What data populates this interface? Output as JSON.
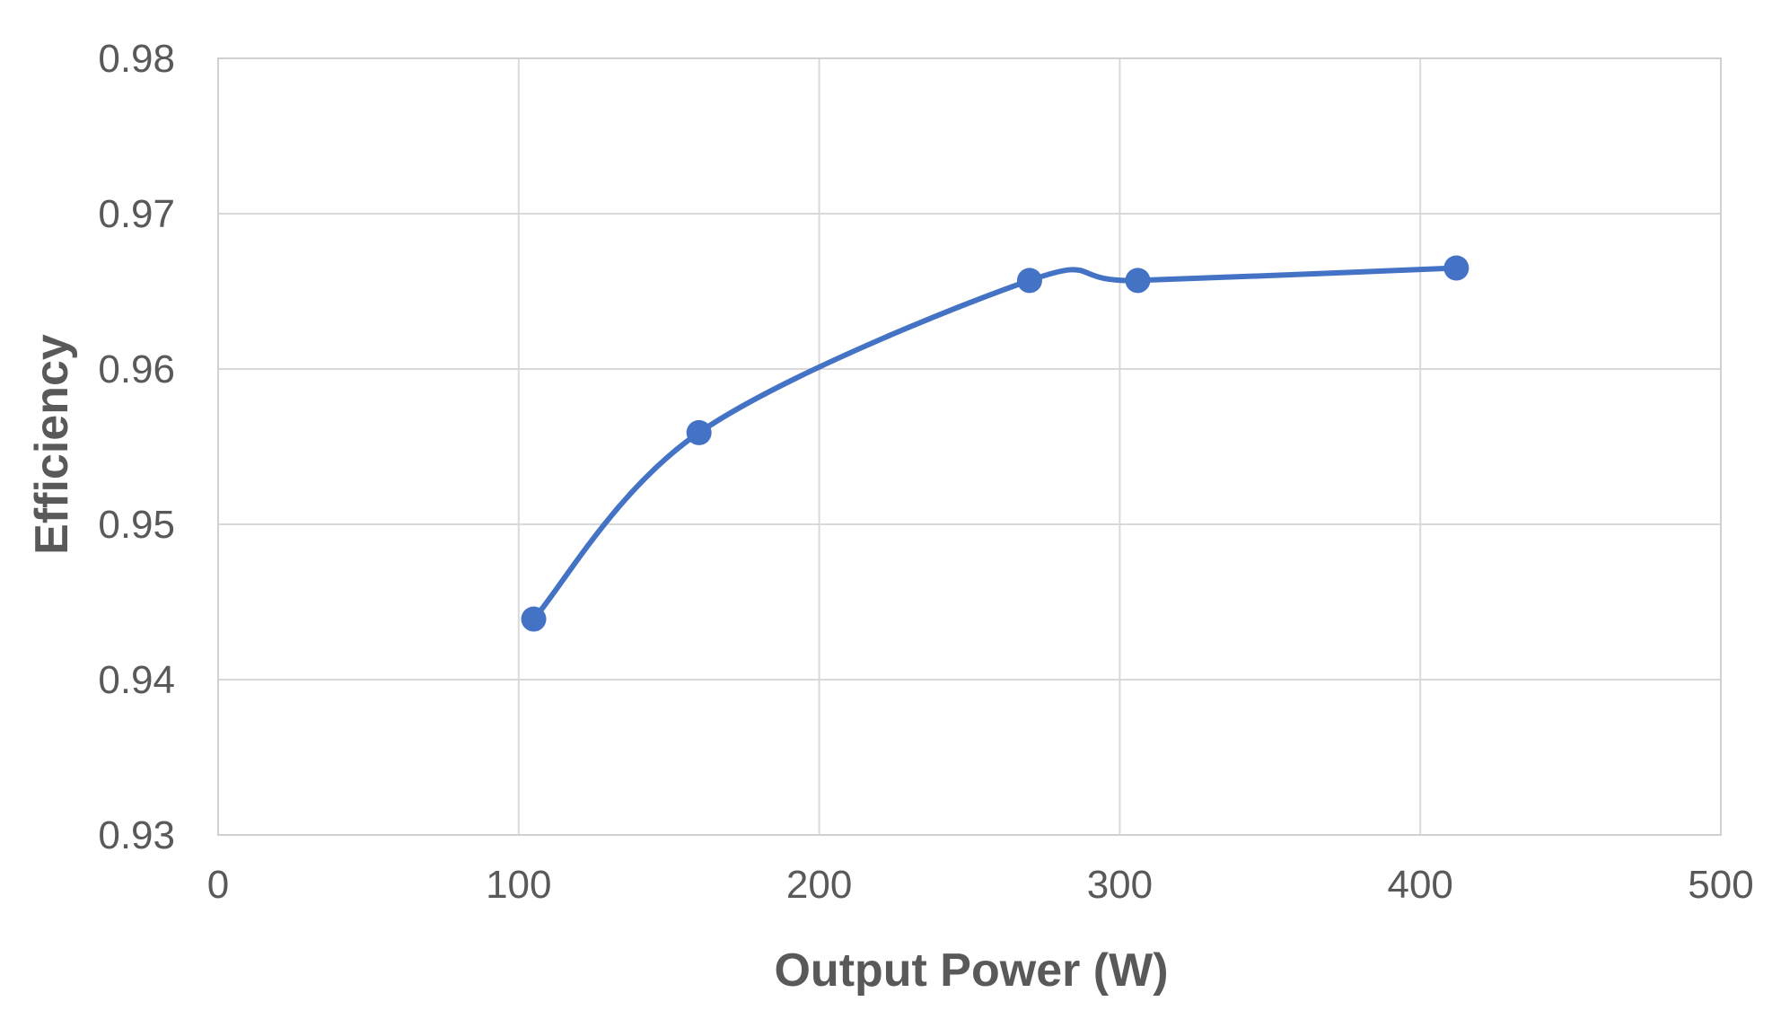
{
  "chart_data": {
    "type": "line",
    "title": "",
    "xlabel": "Output Power (W)",
    "ylabel": "Efficiency",
    "xlim": [
      0,
      500
    ],
    "ylim": [
      0.93,
      0.98
    ],
    "x_ticks": [
      0,
      100,
      200,
      300,
      400,
      500
    ],
    "x_tick_labels": [
      "0",
      "100",
      "200",
      "300",
      "400",
      "500"
    ],
    "y_ticks": [
      0.93,
      0.94,
      0.95,
      0.96,
      0.97,
      0.98
    ],
    "y_tick_labels": [
      "0.93",
      "0.94",
      "0.95",
      "0.96",
      "0.97",
      "0.98"
    ],
    "grid": true,
    "smooth": true,
    "legend": "none",
    "series": [
      {
        "color": "#4472C4",
        "x": [
          105,
          160,
          270,
          306,
          412
        ],
        "y": [
          0.9439,
          0.9559,
          0.9657,
          0.9657,
          0.9665
        ]
      }
    ]
  }
}
